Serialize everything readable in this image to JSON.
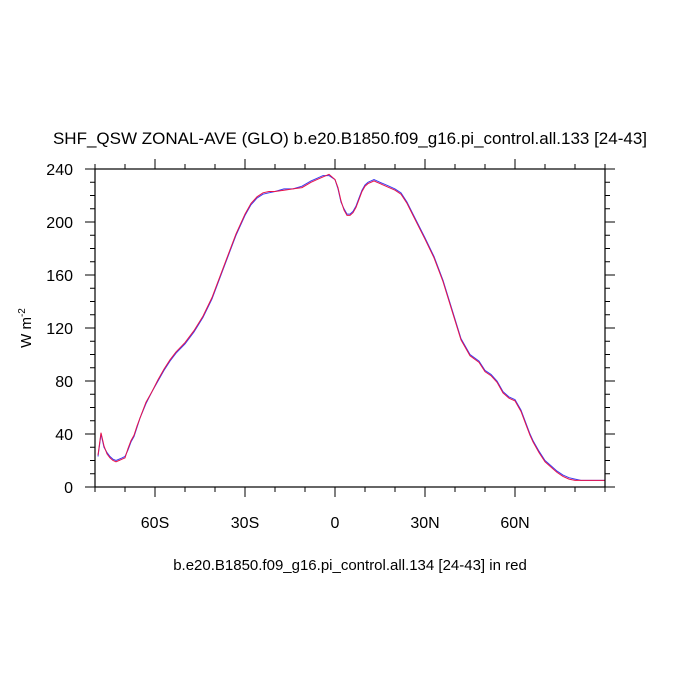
{
  "chart_data": {
    "type": "line",
    "title": "SHF_QSW ZONAL-AVE (GLO) b.e20.B1850.f09_g16.pi_control.all.133 [24-43]",
    "ylabel_text": "W m",
    "ylabel_superscript": "-2",
    "caption": "b.e20.B1850.f09_g16.pi_control.all.134 [24-43] in red",
    "xlim": [
      -80,
      90
    ],
    "ylim": [
      0,
      240
    ],
    "xticks": [
      {
        "value": -60,
        "label": "60S"
      },
      {
        "value": -30,
        "label": "30S"
      },
      {
        "value": 0,
        "label": "0"
      },
      {
        "value": 30,
        "label": "30N"
      },
      {
        "value": 60,
        "label": "60N"
      }
    ],
    "yticks": [
      0,
      40,
      80,
      120,
      160,
      200,
      240
    ],
    "colors": {
      "series_133": "#3a3af0",
      "series_134": "#e8134b",
      "axis": "#000000"
    },
    "series": [
      {
        "x": [
          -79,
          -78,
          -77,
          -76,
          -75,
          -74,
          -73,
          -72,
          -71,
          -70,
          -69,
          -68,
          -67,
          -66,
          -65,
          -63,
          -61,
          -59,
          -57,
          -55,
          -53,
          -50,
          -47,
          -44,
          -41,
          -38,
          -35,
          -33,
          -30,
          -28,
          -26,
          -24,
          -22,
          -20,
          -17,
          -14,
          -11,
          -8,
          -6,
          -4,
          -2,
          0,
          1,
          2,
          3,
          4,
          5,
          6,
          7,
          8,
          9,
          10,
          11,
          12,
          13,
          14,
          15,
          16,
          18,
          20,
          22,
          24,
          26,
          28,
          30,
          33,
          36,
          39,
          42,
          45,
          48,
          50,
          52,
          54,
          56,
          58,
          60,
          62,
          63,
          64,
          65,
          66,
          68,
          70,
          72,
          74,
          76,
          78,
          80,
          82,
          84,
          86,
          88,
          90
        ],
        "values": [
          23,
          40,
          30,
          26,
          23,
          21,
          20,
          21,
          22,
          23,
          28,
          34,
          38,
          45,
          52,
          63,
          72,
          80,
          88,
          95,
          101,
          108,
          117,
          128,
          142,
          160,
          178,
          190,
          205,
          213,
          218,
          221,
          222,
          223,
          225,
          225,
          227,
          231,
          233,
          235,
          235,
          232,
          225,
          215,
          210,
          206,
          206,
          208,
          212,
          218,
          224,
          228,
          230,
          231,
          232,
          231,
          230,
          229,
          227,
          225,
          222,
          215,
          206,
          197,
          188,
          174,
          156,
          134,
          112,
          100,
          95,
          88,
          85,
          80,
          72,
          68,
          66,
          58,
          52,
          46,
          40,
          35,
          27,
          20,
          16,
          12,
          9,
          7,
          6,
          5,
          5,
          5,
          5,
          5
        ]
      },
      {
        "x": [
          -79,
          -78,
          -77,
          -76,
          -75,
          -74,
          -73,
          -72,
          -71,
          -70,
          -69,
          -68,
          -67,
          -66,
          -65,
          -63,
          -61,
          -59,
          -57,
          -55,
          -53,
          -50,
          -47,
          -44,
          -41,
          -38,
          -35,
          -33,
          -30,
          -28,
          -26,
          -24,
          -22,
          -20,
          -17,
          -14,
          -11,
          -8,
          -6,
          -4,
          -2,
          0,
          1,
          2,
          3,
          4,
          5,
          6,
          7,
          8,
          9,
          10,
          11,
          12,
          13,
          14,
          15,
          16,
          18,
          20,
          22,
          24,
          26,
          28,
          30,
          33,
          36,
          39,
          42,
          45,
          48,
          50,
          52,
          54,
          56,
          58,
          60,
          62,
          63,
          64,
          65,
          66,
          68,
          70,
          72,
          74,
          76,
          78,
          80,
          82,
          84,
          86,
          88,
          90
        ],
        "values": [
          24,
          41,
          31,
          25,
          22,
          20,
          19,
          20,
          21,
          22,
          29,
          35,
          39,
          46,
          52,
          64,
          72,
          81,
          89,
          96,
          102,
          109,
          118,
          129,
          143,
          161,
          179,
          191,
          206,
          214,
          219,
          222,
          223,
          223,
          224,
          225,
          226,
          230,
          232,
          234,
          236,
          232,
          226,
          216,
          209,
          205,
          205,
          207,
          211,
          217,
          223,
          227,
          229,
          230,
          231,
          230,
          229,
          228,
          226,
          224,
          221,
          214,
          205,
          196,
          187,
          173,
          155,
          133,
          111,
          99,
          94,
          87,
          84,
          79,
          71,
          67,
          65,
          57,
          51,
          45,
          39,
          34,
          26,
          19,
          15,
          11,
          8,
          6,
          5,
          5,
          5,
          5,
          5,
          5
        ]
      }
    ]
  }
}
